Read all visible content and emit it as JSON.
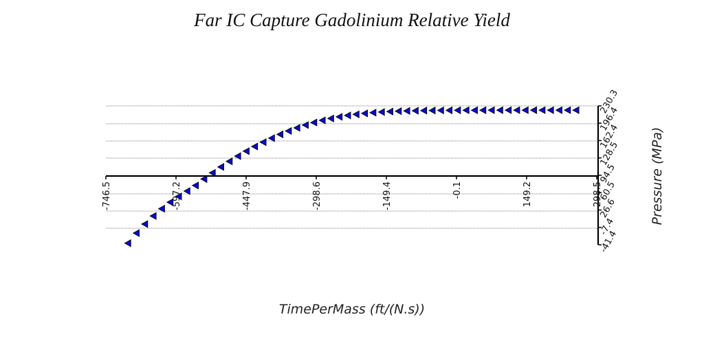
{
  "chart_data": {
    "type": "scatter",
    "title": "Far IC Capture Gadolinium Relative Yield",
    "xlabel": "TimePerMass (ft/(N.s))",
    "ylabel": "Pressure (MPa)",
    "xlim": [
      -746.5,
      298.5
    ],
    "ylim": [
      -41.4,
      230.3
    ],
    "x_ticks": [
      "-746.5",
      "-597.2",
      "-447.9",
      "-298.6",
      "-149.4",
      "-0.1",
      "149.2",
      "298.5"
    ],
    "y_ticks": [
      "-41.4",
      "-7.4",
      "26.6",
      "60.5",
      "94.5",
      "128.5",
      "162.4",
      "196.4",
      "230.3"
    ],
    "grid": "horizontal dotted",
    "marker": "left-pointing triangle",
    "series": [
      {
        "color": "#0a0acc",
        "x": [
          -700,
          -682,
          -664,
          -646,
          -628,
          -610,
          -592,
          -574,
          -556,
          -538,
          -520,
          -502,
          -484,
          -466,
          -448,
          -430,
          -412,
          -394,
          -376,
          -358,
          -340,
          -322,
          -304,
          -286,
          -268,
          -250,
          -232,
          -214,
          -196,
          -178,
          -160,
          -142,
          -124,
          -106,
          -88,
          -70,
          -52,
          -34,
          -16,
          2,
          20,
          38,
          56,
          74,
          92,
          110,
          128,
          146,
          164,
          182,
          200,
          218,
          236,
          254
        ],
        "y": [
          -38.3,
          -18.6,
          -0.9,
          14.9,
          29.1,
          41.8,
          53.2,
          63.6,
          74.6,
          87.2,
          99.3,
          110.8,
          121.7,
          132.0,
          141.7,
          150.8,
          159.3,
          167.2,
          174.5,
          181.2,
          187.3,
          192.8,
          197.7,
          202.0,
          205.7,
          208.9,
          211.6,
          213.8,
          215.6,
          217.1,
          218.3,
          219.2,
          219.9,
          220.4,
          220.8,
          221.1,
          221.3,
          221.5,
          221.6,
          221.7,
          221.8,
          221.8,
          221.8,
          221.9,
          221.9,
          221.9,
          221.9,
          221.9,
          221.9,
          221.9,
          221.9,
          221.9,
          221.9,
          221.9
        ]
      }
    ]
  }
}
